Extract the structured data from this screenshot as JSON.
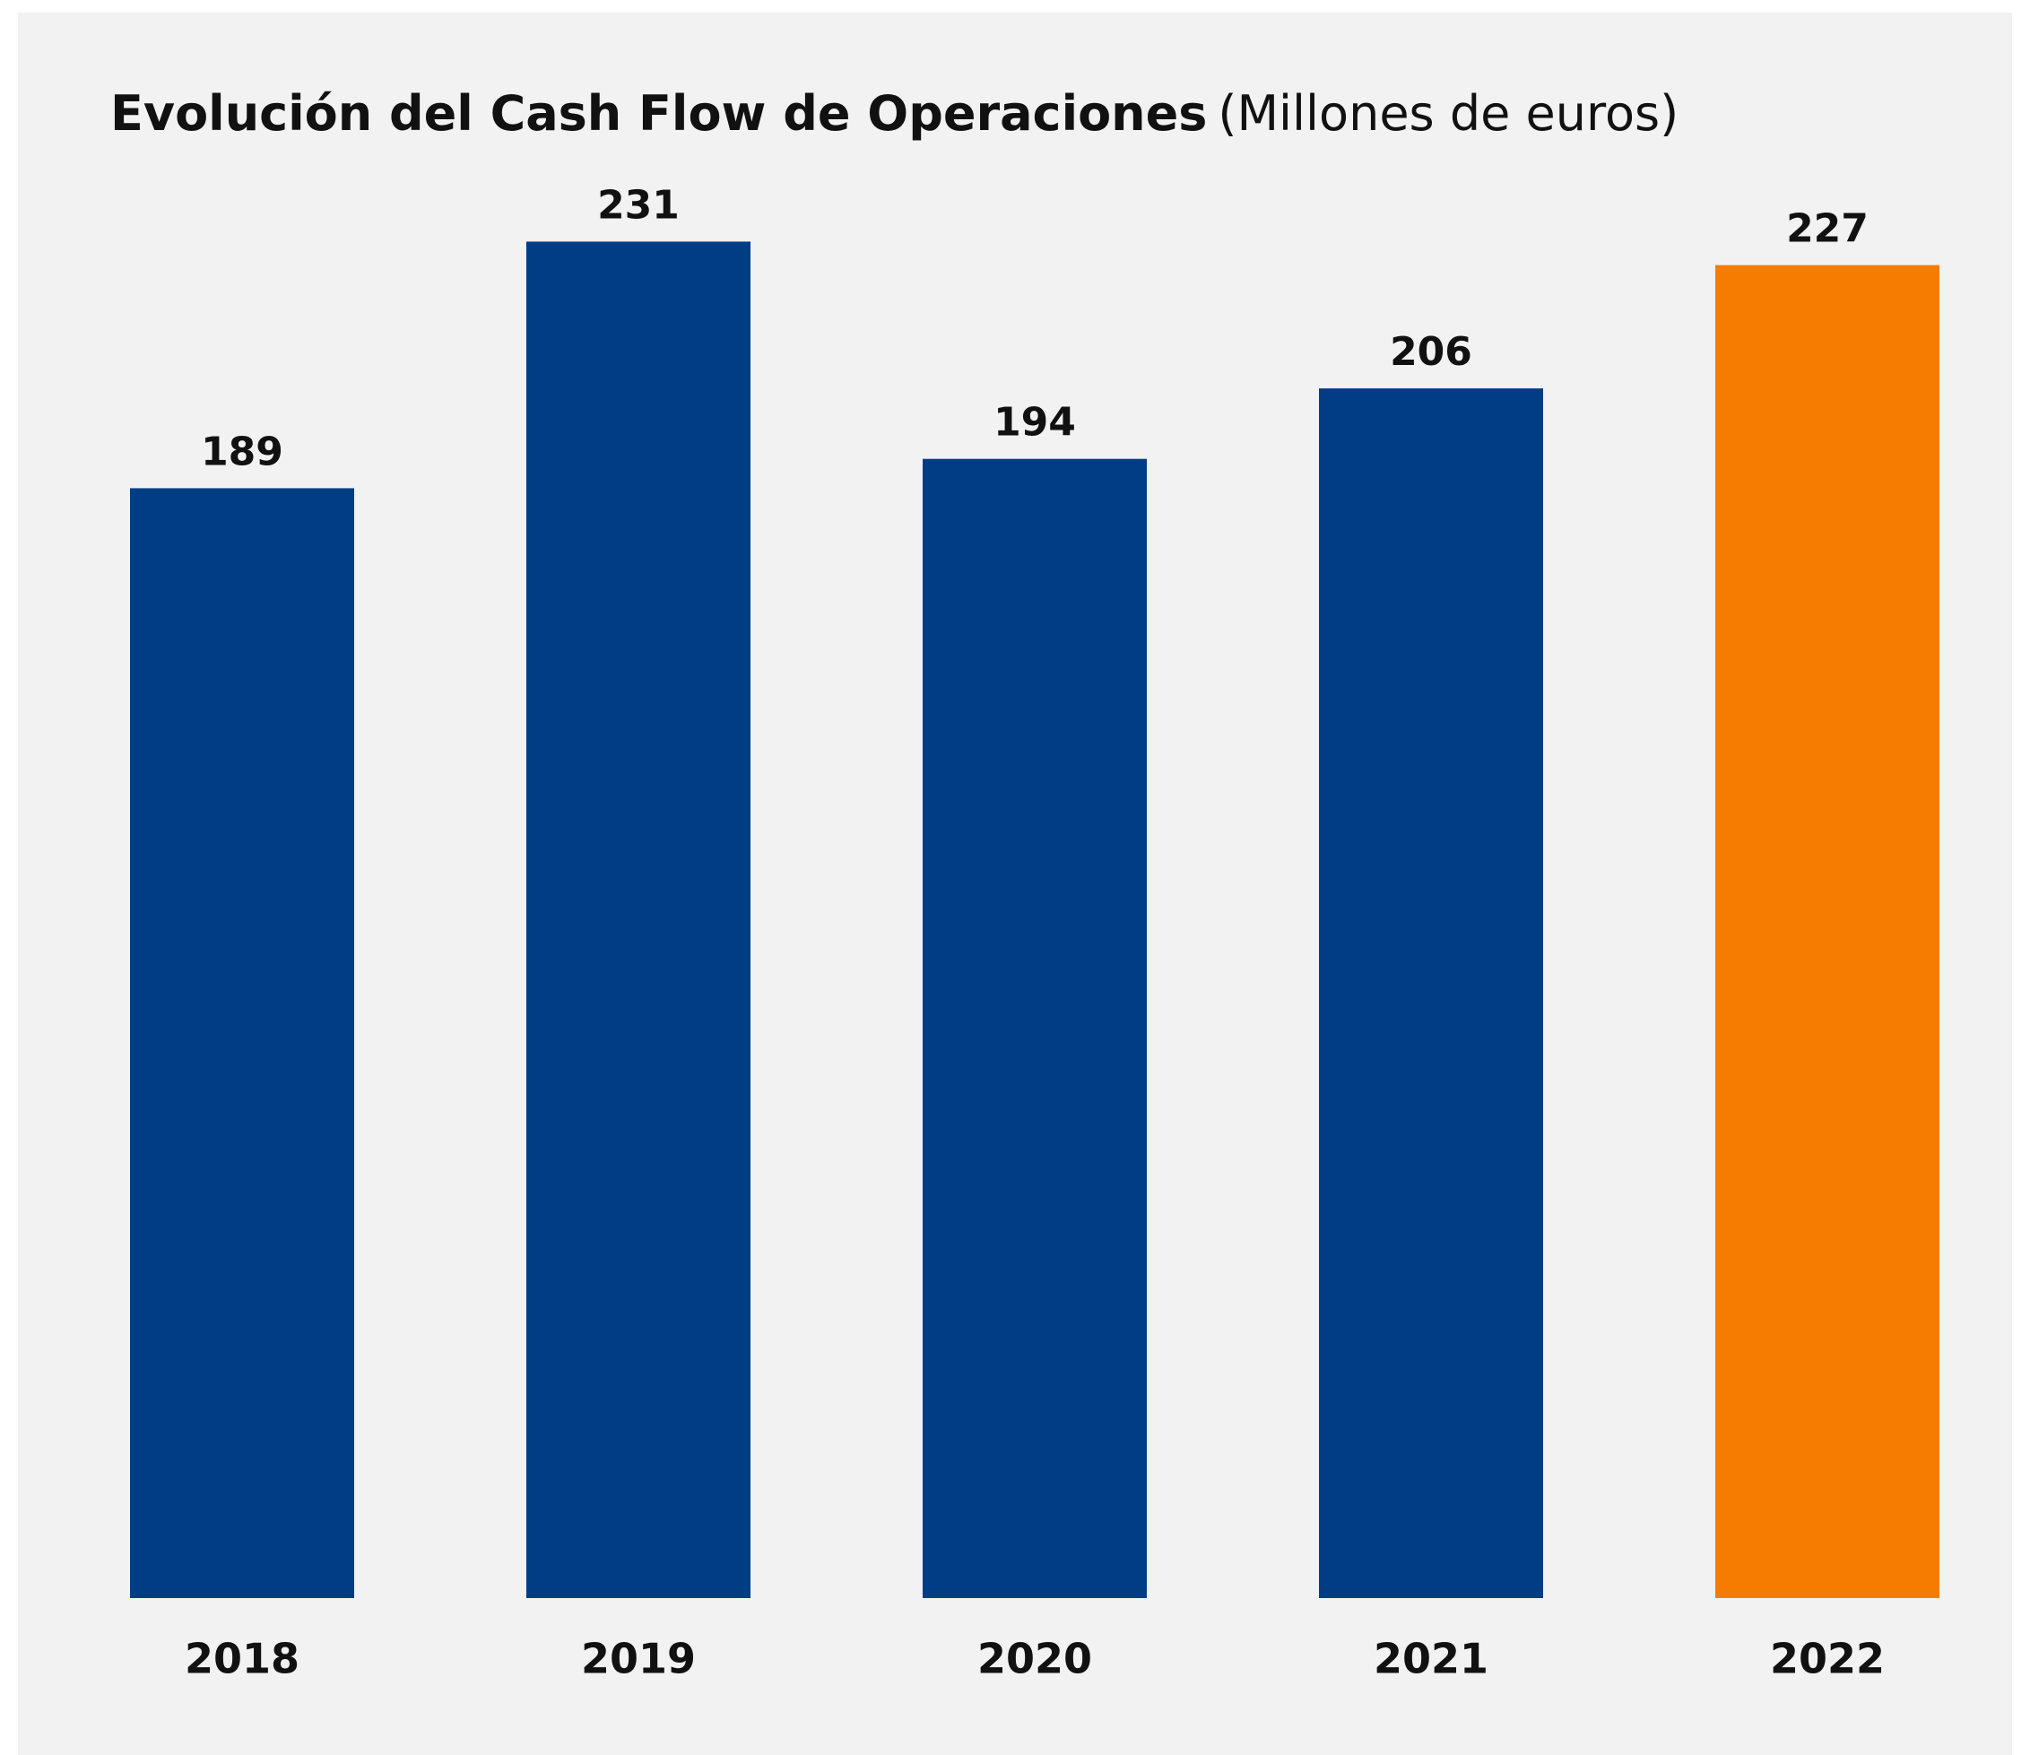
{
  "chart_data": {
    "type": "bar",
    "title": "Evolución del Cash Flow de Operaciones",
    "subtitle": "(Millones de euros)",
    "categories": [
      "2018",
      "2019",
      "2020",
      "2021",
      "2022"
    ],
    "values": [
      189,
      231,
      194,
      206,
      227
    ],
    "colors": [
      "#003d85",
      "#003d85",
      "#003d85",
      "#003d85",
      "#f57c00"
    ],
    "ylim": [
      0,
      250
    ]
  }
}
